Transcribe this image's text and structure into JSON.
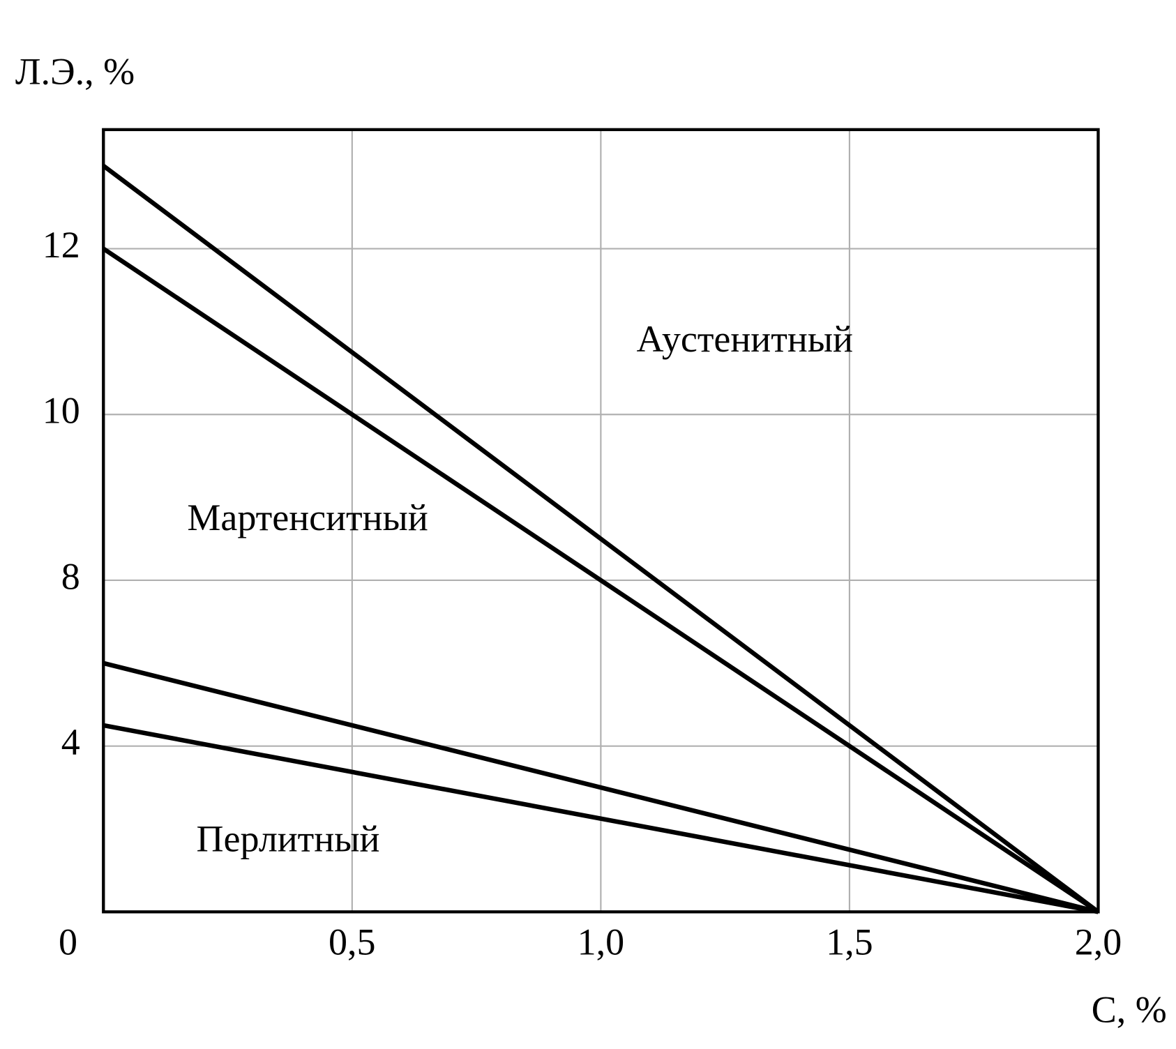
{
  "chart_data": {
    "type": "line",
    "x_label": "С, %",
    "y_label": "Л.Э., %",
    "x": [
      0,
      2.0
    ],
    "series": [
      {
        "color": "#000000",
        "values": [
          13,
          0
        ]
      },
      {
        "color": "#000000",
        "values": [
          12,
          0
        ]
      },
      {
        "color": "#000000",
        "values": [
          6,
          0
        ]
      },
      {
        "color": "#000000",
        "values": [
          4.5,
          0
        ]
      }
    ],
    "xlim": [
      0,
      2.0
    ],
    "xticks": [
      {
        "value": 0.5,
        "label": "0,5"
      },
      {
        "value": 1.0,
        "label": "1,0"
      },
      {
        "value": 1.5,
        "label": "1,5"
      },
      {
        "value": 2.0,
        "label": "2,0"
      }
    ],
    "ylim": [
      0,
      13.44
    ],
    "yticks": [
      0,
      4,
      8,
      10,
      12
    ],
    "yscale": "piecewise",
    "grid": true,
    "annotations": [
      "Аустенитный",
      "Мартенситный",
      "Перлитный"
    ]
  }
}
